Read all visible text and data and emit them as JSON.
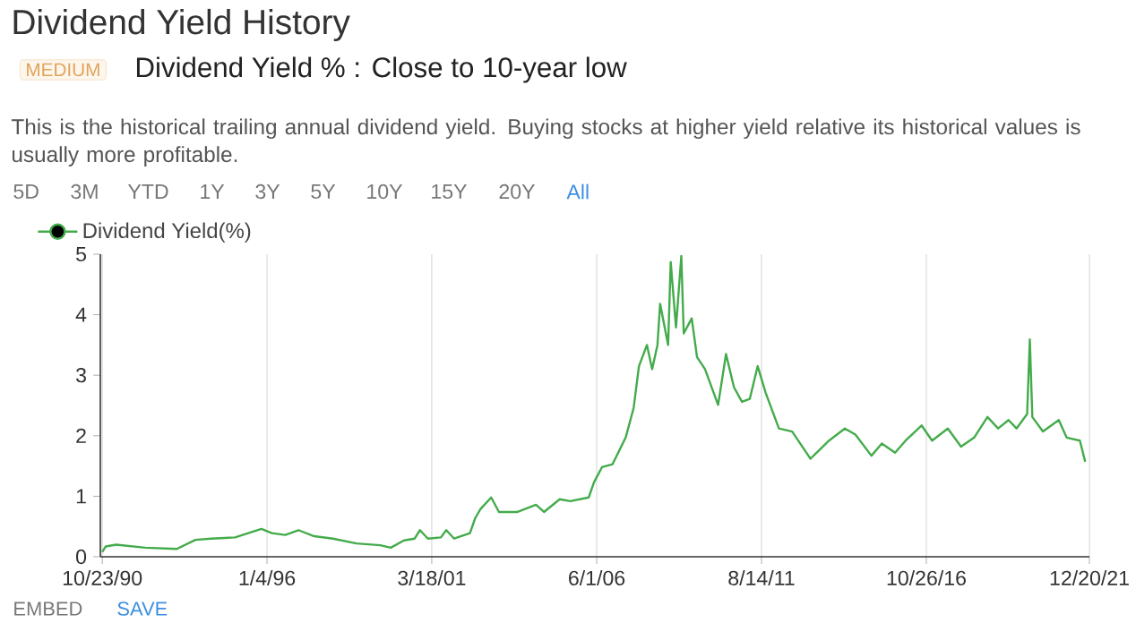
{
  "chart_data": {
    "type": "line",
    "title": "Dividend Yield History",
    "subtitle": "Dividend Yield % : Close to 10-year low",
    "annotations": [
      "MEDIUM",
      "This is the historical trailing annual dividend yield. Buying stocks at higher yield relative its historical values is usually more profitable.",
      "5D",
      "3M",
      "YTD",
      "1Y",
      "3Y",
      "5Y",
      "10Y",
      "15Y",
      "20Y",
      "All",
      "EMBED",
      "SAVE"
    ],
    "x": [
      "1990-10-23",
      "1990-12",
      "1991-04",
      "1992-03",
      "1993-03",
      "1993-10",
      "1994-04",
      "1995-01",
      "1995-06",
      "1995-11",
      "1996-03",
      "1996-08",
      "1997-01",
      "1997-07",
      "1998-02",
      "1998-11",
      "1999-08",
      "1999-12",
      "2000-05",
      "2000-09",
      "2000-11",
      "2001-02",
      "2001-07",
      "2001-09",
      "2001-12",
      "2002-06",
      "2002-08",
      "2002-10",
      "2003-02",
      "2003-05",
      "2003-12",
      "2004-07",
      "2004-10",
      "2005-04",
      "2005-08",
      "2006-03",
      "2006-05",
      "2006-08",
      "2006-12",
      "2007-05",
      "2007-08",
      "2007-10",
      "2008-01",
      "2008-03",
      "2008-05",
      "2008-06",
      "2008-09",
      "2008-10",
      "2008-12",
      "2009-02",
      "2009-03",
      "2009-06",
      "2009-08",
      "2009-11",
      "2010-04",
      "2010-07",
      "2010-10",
      "2011-01",
      "2011-04",
      "2011-07",
      "2011-10",
      "2012-03",
      "2012-08",
      "2013-03",
      "2013-10",
      "2014-04",
      "2014-08",
      "2015-02",
      "2015-06",
      "2015-11",
      "2016-03",
      "2016-09",
      "2017-01",
      "2017-07",
      "2017-12",
      "2018-05",
      "2018-10",
      "2019-02",
      "2019-06",
      "2019-09",
      "2020-01",
      "2020-02",
      "2020-03",
      "2020-07",
      "2021-01",
      "2021-04",
      "2021-09",
      "2021-11"
    ],
    "series": [
      {
        "name": "Dividend Yield(%)",
        "color": "#43ab4b",
        "values": [
          0.08,
          0.17,
          0.2,
          0.15,
          0.13,
          0.28,
          0.3,
          0.32,
          0.39,
          0.46,
          0.39,
          0.36,
          0.44,
          0.34,
          0.3,
          0.22,
          0.19,
          0.15,
          0.27,
          0.3,
          0.44,
          0.3,
          0.32,
          0.44,
          0.3,
          0.39,
          0.64,
          0.79,
          0.98,
          0.74,
          0.74,
          0.86,
          0.74,
          0.95,
          0.92,
          0.98,
          1.23,
          1.48,
          1.53,
          1.97,
          2.46,
          3.15,
          3.5,
          3.1,
          3.5,
          4.18,
          3.5,
          4.87,
          3.79,
          4.97,
          3.69,
          3.94,
          3.3,
          3.1,
          2.51,
          3.35,
          2.8,
          2.56,
          2.61,
          3.15,
          2.71,
          2.12,
          2.07,
          1.62,
          1.92,
          2.12,
          2.02,
          1.67,
          1.87,
          1.72,
          1.92,
          2.17,
          1.92,
          2.12,
          1.82,
          1.97,
          2.31,
          2.12,
          2.26,
          2.12,
          2.36,
          3.59,
          2.31,
          2.07,
          2.26,
          1.97,
          1.92,
          1.57
        ]
      }
    ],
    "xlim": [
      "1990-10-01",
      "2021-12-20"
    ],
    "xticks": [
      {
        "value": "1990-10-23",
        "label": "10/23/90"
      },
      {
        "value": "1996-01-04",
        "label": "1/4/96"
      },
      {
        "value": "2001-03-18",
        "label": "3/18/01"
      },
      {
        "value": "2006-06-01",
        "label": "6/1/06"
      },
      {
        "value": "2011-08-14",
        "label": "8/14/11"
      },
      {
        "value": "2016-10-26",
        "label": "10/26/16"
      },
      {
        "value": "2021-12-20",
        "label": "12/20/21"
      }
    ],
    "ylim": [
      0,
      5
    ],
    "yticks": [
      0,
      1,
      2,
      3,
      4,
      5
    ],
    "grid": "x",
    "legend": "top left"
  }
}
